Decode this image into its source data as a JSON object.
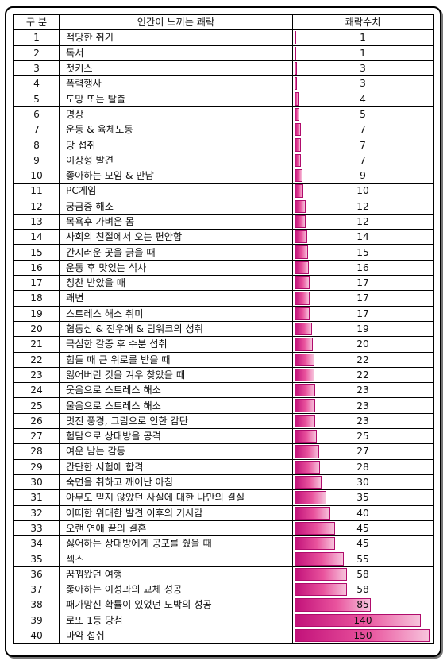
{
  "table": {
    "headers": [
      "구 분",
      "인간이 느끼는 쾌락",
      "쾌락수치"
    ],
    "max_value": 150,
    "rows": [
      {
        "no": "1",
        "name": "적당한 취기",
        "value": 1
      },
      {
        "no": "2",
        "name": "독서",
        "value": 1
      },
      {
        "no": "3",
        "name": "첫키스",
        "value": 3
      },
      {
        "no": "4",
        "name": "폭력행사",
        "value": 3
      },
      {
        "no": "5",
        "name": "도망 또는 탈출",
        "value": 4
      },
      {
        "no": "6",
        "name": "명상",
        "value": 5
      },
      {
        "no": "7",
        "name": "운동 & 육체노동",
        "value": 7
      },
      {
        "no": "8",
        "name": "당 섭취",
        "value": 7
      },
      {
        "no": "9",
        "name": "이상형 발견",
        "value": 7
      },
      {
        "no": "10",
        "name": "좋아하는 모임 & 만남",
        "value": 9
      },
      {
        "no": "11",
        "name": "PC게임",
        "value": 10
      },
      {
        "no": "12",
        "name": "궁금증 해소",
        "value": 12
      },
      {
        "no": "13",
        "name": "목욕후 가벼운 몸",
        "value": 12
      },
      {
        "no": "14",
        "name": "사회의 친절에서 오는 편안함",
        "value": 14
      },
      {
        "no": "15",
        "name": "간지러운 곳을 긁을 때",
        "value": 15
      },
      {
        "no": "16",
        "name": "운동 후 맛있는 식사",
        "value": 16
      },
      {
        "no": "17",
        "name": "칭찬 받았을 때",
        "value": 17
      },
      {
        "no": "18",
        "name": "쾌변",
        "value": 17
      },
      {
        "no": "19",
        "name": "스트레스 해소 취미",
        "value": 17
      },
      {
        "no": "20",
        "name": "협동심 & 전우애 & 팀워크의 성취",
        "value": 19
      },
      {
        "no": "21",
        "name": "극심한 갈증 후 수분 섭취",
        "value": 20
      },
      {
        "no": "22",
        "name": "힘들 때 큰 위로를 받을 때",
        "value": 22
      },
      {
        "no": "23",
        "name": "잃어버린 것을 겨우 찾았을 때",
        "value": 22
      },
      {
        "no": "24",
        "name": "웃음으로 스트레스 해소",
        "value": 23
      },
      {
        "no": "25",
        "name": "울음으로 스트레스 해소",
        "value": 23
      },
      {
        "no": "26",
        "name": "멋진 풍경, 그림으로 인한 감탄",
        "value": 23
      },
      {
        "no": "27",
        "name": "험담으로 상대방을 공격",
        "value": 25
      },
      {
        "no": "28",
        "name": "여운 남는 감동",
        "value": 27
      },
      {
        "no": "29",
        "name": "간단한 시험에 합격",
        "value": 28
      },
      {
        "no": "30",
        "name": "숙면을 취하고 깨어난 아침",
        "value": 30
      },
      {
        "no": "31",
        "name": "아무도 믿지 않았던 사실에 대한 나만의 결실",
        "value": 35
      },
      {
        "no": "32",
        "name": "어떠한 위대한 발견 이후의 기시감",
        "value": 40
      },
      {
        "no": "33",
        "name": "오랜 연애 끝의 결혼",
        "value": 45
      },
      {
        "no": "34",
        "name": "싫어하는 상대방에게 공포를 줬을 때",
        "value": 45
      },
      {
        "no": "35",
        "name": "섹스",
        "value": 55
      },
      {
        "no": "36",
        "name": "꿈꿔왔던 여행",
        "value": 58
      },
      {
        "no": "37",
        "name": "좋아하는 이성과의 교체 성공",
        "value": 58
      },
      {
        "no": "38",
        "name": "패가망신 확률이 있었던 도박의 성공",
        "value": 85
      },
      {
        "no": "39",
        "name": "로또 1등 당첨",
        "value": 140
      },
      {
        "no": "40",
        "name": "마약 섭취",
        "value": 150
      }
    ]
  }
}
